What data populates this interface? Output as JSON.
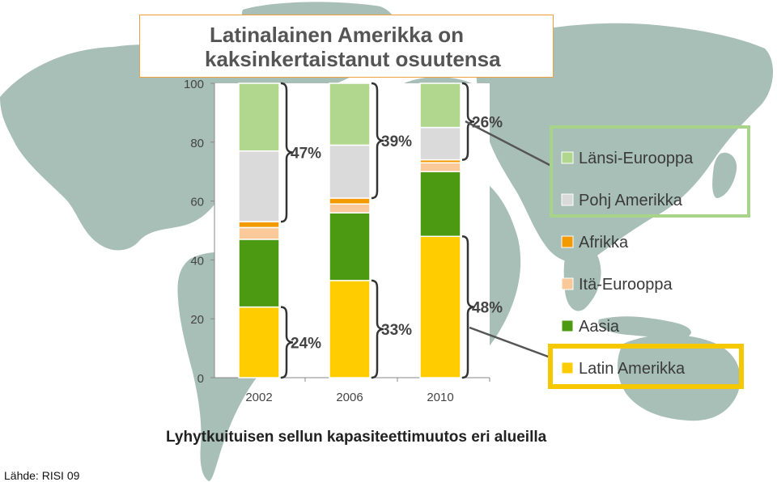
{
  "title": {
    "line1": "Latinalainen Amerikka on",
    "line2": "kaksinkertaistanut osuutensa"
  },
  "subtitle": "Lyhytkuituisen sellun kapasiteettimuutos eri alueilla",
  "source": "Lähde: RISI 09",
  "colors": {
    "map": "#a7bfb7",
    "plot_bg": "#ffffff",
    "bracket": "#333333",
    "callout_line": "#555555",
    "green_box": "#a8d48a",
    "yellow_box": "#f5c800"
  },
  "chart_data": {
    "type": "bar",
    "stacked": true,
    "categories": [
      "2002",
      "2006",
      "2010"
    ],
    "ylim": [
      0,
      100
    ],
    "yticks": [
      0,
      20,
      40,
      60,
      80,
      100
    ],
    "grid": false,
    "legend_position": "right",
    "series": [
      {
        "name": "Latin Amerikka",
        "color": "#ffcc00",
        "values": [
          24,
          33,
          48
        ]
      },
      {
        "name": "Aasia",
        "color": "#4c9a12",
        "values": [
          23,
          23,
          22
        ]
      },
      {
        "name": "Itä-Eurooppa",
        "color": "#f9c99a",
        "values": [
          4,
          3,
          3
        ]
      },
      {
        "name": "Afrikka",
        "color": "#f29a00",
        "values": [
          2,
          2,
          1
        ]
      },
      {
        "name": "Pohj Amerikka",
        "color": "#dadada",
        "values": [
          24,
          18,
          11
        ]
      },
      {
        "name": "Länsi-Eurooppa",
        "color": "#b1d78e",
        "values": [
          23,
          21,
          15
        ]
      }
    ],
    "annotations": [
      {
        "label": "47%",
        "category": "2002",
        "from": 53,
        "to": 100
      },
      {
        "label": "39%",
        "category": "2006",
        "from": 61,
        "to": 100
      },
      {
        "label": "26%",
        "category": "2010",
        "from": 74,
        "to": 100
      },
      {
        "label": "24%",
        "category": "2002",
        "from": 0,
        "to": 24
      },
      {
        "label": "33%",
        "category": "2006",
        "from": 0,
        "to": 33
      },
      {
        "label": "48%",
        "category": "2010",
        "from": 0,
        "to": 48
      }
    ],
    "legend_order": [
      "Länsi-Eurooppa",
      "Pohj Amerikka",
      "Afrikka",
      "Itä-Eurooppa",
      "Aasia",
      "Latin Amerikka"
    ],
    "highlight_boxes": [
      "Länsi-Eurooppa + Pohj Amerikka",
      "Latin Amerikka"
    ]
  }
}
